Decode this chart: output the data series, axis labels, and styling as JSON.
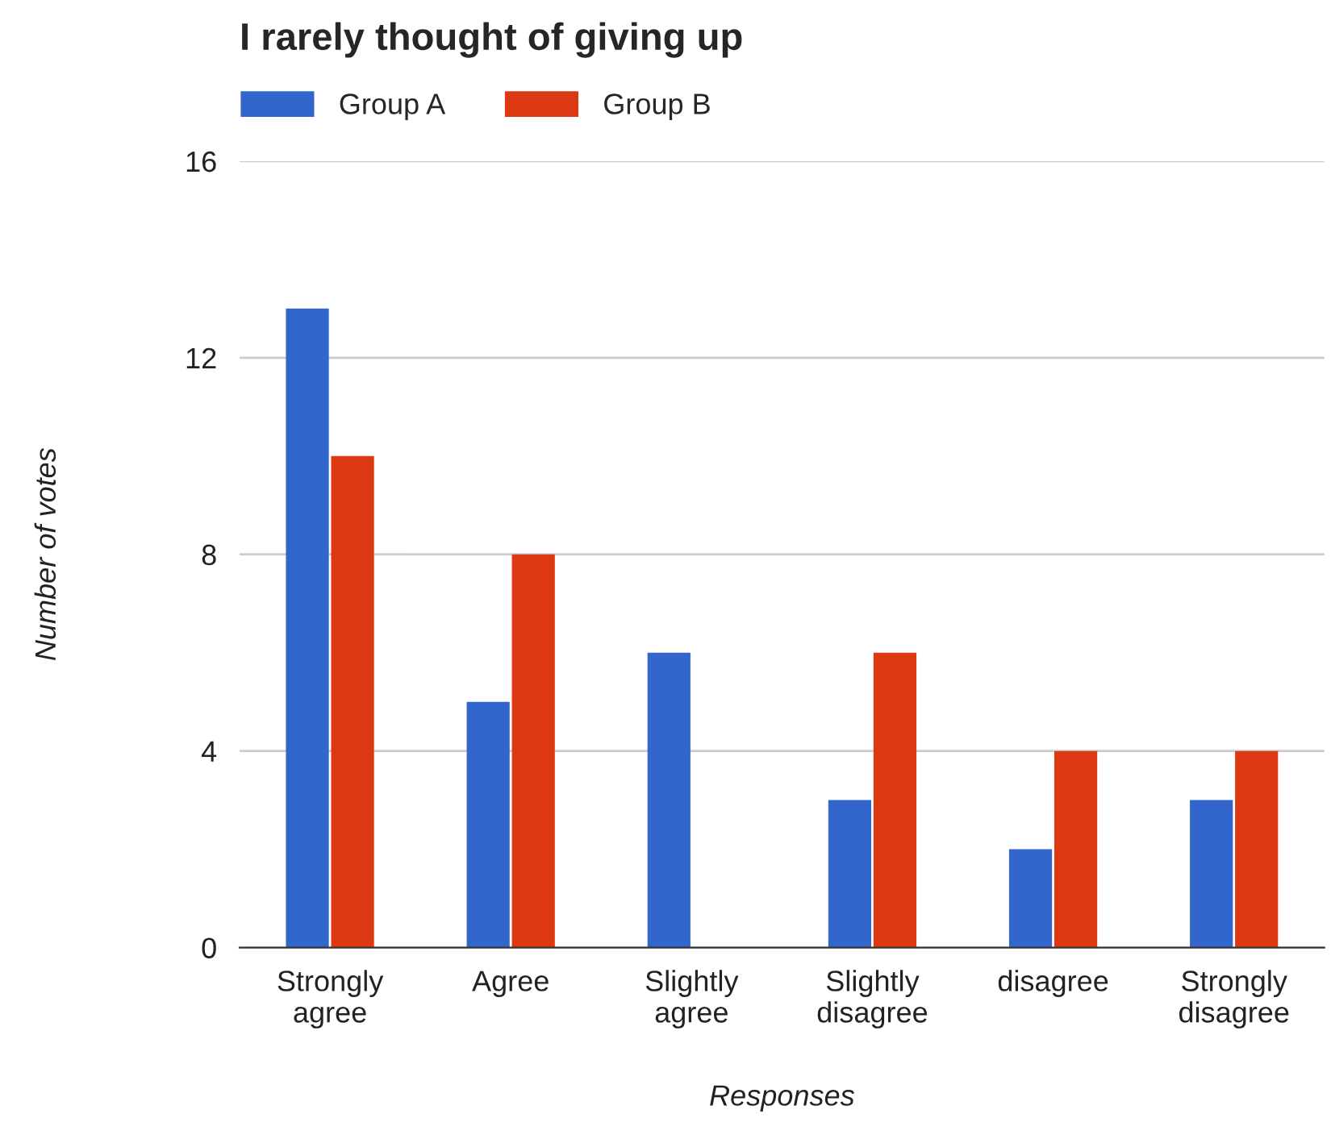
{
  "chart_data": {
    "type": "bar",
    "title": "I rarely thought of giving up",
    "xlabel": "Responses",
    "ylabel": "Number of votes",
    "categories": [
      "Strongly agree",
      "Agree",
      "Slightly agree",
      "Slightly disagree",
      "disagree",
      "Strongly disagree"
    ],
    "series": [
      {
        "name": "Group A",
        "color": "#3366cc",
        "values": [
          13,
          5,
          6,
          3,
          2,
          3
        ]
      },
      {
        "name": "Group B",
        "color": "#dc3912",
        "values": [
          10,
          8,
          0,
          6,
          4,
          4
        ]
      }
    ],
    "ylim": [
      0,
      16
    ],
    "yticks": [
      0,
      4,
      8,
      12,
      16
    ],
    "grid": "y",
    "legend": "top left"
  }
}
